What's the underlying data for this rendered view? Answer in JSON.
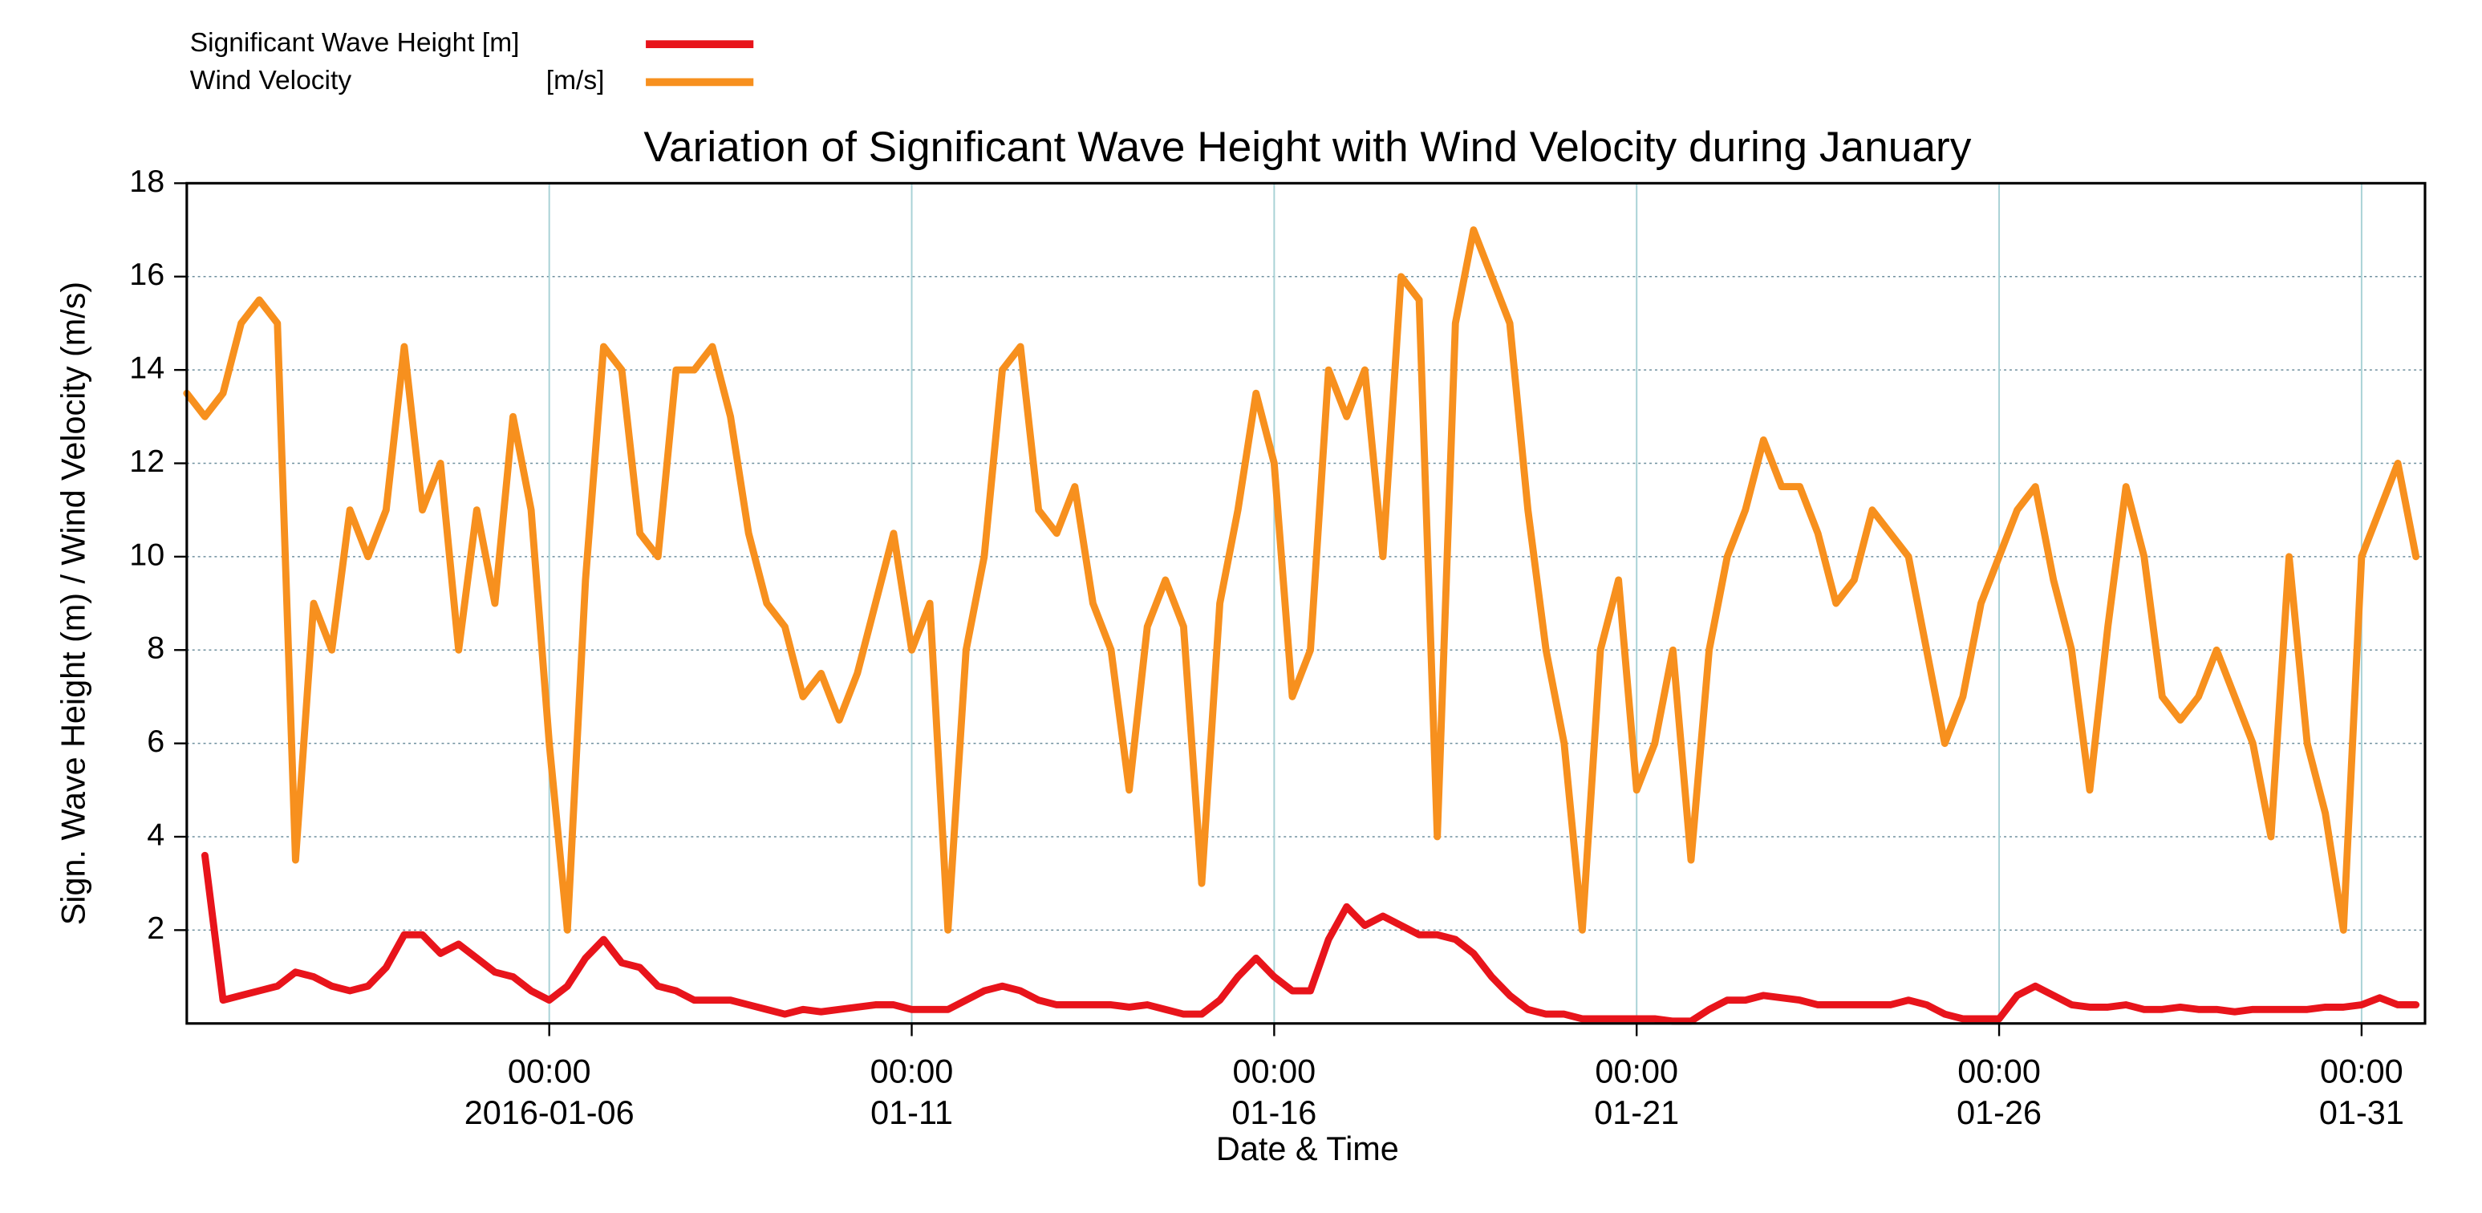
{
  "chart_data": {
    "type": "line",
    "title": "Variation of Significant Wave Height with Wind Velocity during January",
    "x_label": "Date & Time",
    "y_label": "Sign. Wave Height (m) / Wind Velocity (m/s)",
    "x": [
      "2016-01-01 00:00",
      "2016-01-01 06:00",
      "2016-01-01 12:00",
      "2016-01-01 18:00",
      "2016-01-02 00:00",
      "2016-01-02 06:00",
      "2016-01-02 12:00",
      "2016-01-02 18:00",
      "2016-01-03 00:00",
      "2016-01-03 06:00",
      "2016-01-03 12:00",
      "2016-01-03 18:00",
      "2016-01-04 00:00",
      "2016-01-04 06:00",
      "2016-01-04 12:00",
      "2016-01-04 18:00",
      "2016-01-05 00:00",
      "2016-01-05 06:00",
      "2016-01-05 12:00",
      "2016-01-05 18:00",
      "2016-01-06 00:00",
      "2016-01-06 06:00",
      "2016-01-06 12:00",
      "2016-01-06 18:00",
      "2016-01-07 00:00",
      "2016-01-07 06:00",
      "2016-01-07 12:00",
      "2016-01-07 18:00",
      "2016-01-08 00:00",
      "2016-01-08 06:00",
      "2016-01-08 12:00",
      "2016-01-08 18:00",
      "2016-01-09 00:00",
      "2016-01-09 06:00",
      "2016-01-09 12:00",
      "2016-01-09 18:00",
      "2016-01-10 00:00",
      "2016-01-10 06:00",
      "2016-01-10 12:00",
      "2016-01-10 18:00",
      "2016-01-11 00:00",
      "2016-01-11 06:00",
      "2016-01-11 12:00",
      "2016-01-11 18:00",
      "2016-01-12 00:00",
      "2016-01-12 06:00",
      "2016-01-12 12:00",
      "2016-01-12 18:00",
      "2016-01-13 00:00",
      "2016-01-13 06:00",
      "2016-01-13 12:00",
      "2016-01-13 18:00",
      "2016-01-14 00:00",
      "2016-01-14 06:00",
      "2016-01-14 12:00",
      "2016-01-14 18:00",
      "2016-01-15 00:00",
      "2016-01-15 06:00",
      "2016-01-15 12:00",
      "2016-01-15 18:00",
      "2016-01-16 00:00",
      "2016-01-16 06:00",
      "2016-01-16 12:00",
      "2016-01-16 18:00",
      "2016-01-17 00:00",
      "2016-01-17 06:00",
      "2016-01-17 12:00",
      "2016-01-17 18:00",
      "2016-01-18 00:00",
      "2016-01-18 06:00",
      "2016-01-18 12:00",
      "2016-01-18 18:00",
      "2016-01-19 00:00",
      "2016-01-19 06:00",
      "2016-01-19 12:00",
      "2016-01-19 18:00",
      "2016-01-20 00:00",
      "2016-01-20 06:00",
      "2016-01-20 12:00",
      "2016-01-20 18:00",
      "2016-01-21 00:00",
      "2016-01-21 06:00",
      "2016-01-21 12:00",
      "2016-01-21 18:00",
      "2016-01-22 00:00",
      "2016-01-22 06:00",
      "2016-01-22 12:00",
      "2016-01-22 18:00",
      "2016-01-23 00:00",
      "2016-01-23 06:00",
      "2016-01-23 12:00",
      "2016-01-23 18:00",
      "2016-01-24 00:00",
      "2016-01-24 06:00",
      "2016-01-24 12:00",
      "2016-01-24 18:00",
      "2016-01-25 00:00",
      "2016-01-25 06:00",
      "2016-01-25 12:00",
      "2016-01-25 18:00",
      "2016-01-26 00:00",
      "2016-01-26 06:00",
      "2016-01-26 12:00",
      "2016-01-26 18:00",
      "2016-01-27 00:00",
      "2016-01-27 06:00",
      "2016-01-27 12:00",
      "2016-01-27 18:00",
      "2016-01-28 00:00",
      "2016-01-28 06:00",
      "2016-01-28 12:00",
      "2016-01-28 18:00",
      "2016-01-29 00:00",
      "2016-01-29 06:00",
      "2016-01-29 12:00",
      "2016-01-29 18:00",
      "2016-01-30 00:00",
      "2016-01-30 06:00",
      "2016-01-30 12:00",
      "2016-01-30 18:00",
      "2016-01-31 00:00",
      "2016-01-31 06:00",
      "2016-01-31 12:00",
      "2016-01-31 18:00"
    ],
    "series": [
      {
        "name": "Significant Wave Height [m]",
        "color": "#e8141b",
        "values": [
          null,
          3.6,
          0.5,
          0.6,
          0.7,
          0.8,
          1.1,
          1.0,
          0.8,
          0.7,
          0.8,
          1.2,
          1.9,
          1.9,
          1.5,
          1.7,
          1.4,
          1.1,
          1.0,
          0.7,
          0.5,
          0.8,
          1.4,
          1.8,
          1.3,
          1.2,
          0.8,
          0.7,
          0.5,
          0.5,
          0.5,
          0.4,
          0.3,
          0.2,
          0.3,
          0.25,
          0.3,
          0.35,
          0.4,
          0.4,
          0.3,
          0.3,
          0.3,
          0.5,
          0.7,
          0.8,
          0.7,
          0.5,
          0.4,
          0.4,
          0.4,
          0.4,
          0.35,
          0.4,
          0.3,
          0.2,
          0.2,
          0.5,
          1.0,
          1.4,
          1.0,
          0.7,
          0.7,
          1.8,
          2.5,
          2.1,
          2.3,
          2.1,
          1.9,
          1.9,
          1.8,
          1.5,
          1.0,
          0.6,
          0.3,
          0.2,
          0.2,
          0.1,
          0.1,
          0.1,
          0.1,
          0.1,
          0.05,
          0.05,
          0.3,
          0.5,
          0.5,
          0.6,
          0.55,
          0.5,
          0.4,
          0.4,
          0.4,
          0.4,
          0.4,
          0.5,
          0.4,
          0.2,
          0.1,
          0.1,
          0.1,
          0.6,
          0.8,
          0.6,
          0.4,
          0.35,
          0.35,
          0.4,
          0.3,
          0.3,
          0.35,
          0.3,
          0.3,
          0.25,
          0.3,
          0.3,
          0.3,
          0.3,
          0.35,
          0.35,
          0.4,
          0.55,
          0.4,
          0.4
        ]
      },
      {
        "name": "Wind Velocity",
        "legend_unit": "[m/s]",
        "color": "#f7901e",
        "values": [
          13.5,
          13.0,
          13.5,
          15,
          15.5,
          15,
          3.5,
          9,
          8,
          11,
          10,
          11,
          14.5,
          11,
          12,
          8,
          11,
          9,
          13,
          11,
          6,
          2,
          9.5,
          14.5,
          14,
          10.5,
          10,
          14,
          14,
          14.5,
          13,
          10.5,
          9,
          8.5,
          7,
          7.5,
          6.5,
          7.5,
          9,
          10.5,
          8,
          9,
          2,
          8,
          10,
          14,
          14.5,
          11,
          10.5,
          11.5,
          9,
          8,
          5,
          8.5,
          9.5,
          8.5,
          3,
          9,
          11,
          13.5,
          12,
          7,
          8,
          14,
          13,
          14,
          10,
          16,
          15.5,
          4,
          15,
          17,
          16,
          15,
          11,
          8,
          6,
          2,
          8,
          9.5,
          5,
          6,
          8,
          3.5,
          8,
          10,
          11,
          12.5,
          11.5,
          11.5,
          10.5,
          9,
          9.5,
          11,
          10.5,
          10,
          8,
          6,
          7,
          9,
          10,
          11,
          11.5,
          9.5,
          8,
          5,
          8.5,
          11.5,
          10,
          7,
          6.5,
          7,
          8,
          7,
          6,
          4,
          10,
          6,
          4.5,
          2,
          10,
          11,
          12,
          10
        ]
      }
    ],
    "xlim": [
      "2016-01-01 00:00",
      "2016-01-31 21:00"
    ],
    "xticks": [
      {
        "value": "2016-01-06 00:00",
        "label": [
          "00:00",
          "2016-01-06"
        ]
      },
      {
        "value": "2016-01-11 00:00",
        "label": [
          "00:00",
          "01-11"
        ]
      },
      {
        "value": "2016-01-16 00:00",
        "label": [
          "00:00",
          "01-16"
        ]
      },
      {
        "value": "2016-01-21 00:00",
        "label": [
          "00:00",
          "01-21"
        ]
      },
      {
        "value": "2016-01-26 00:00",
        "label": [
          "00:00",
          "01-26"
        ]
      },
      {
        "value": "2016-01-31 00:00",
        "label": [
          "00:00",
          "01-31"
        ]
      }
    ],
    "ylim": [
      0,
      18
    ],
    "yticks": [
      2,
      4,
      6,
      8,
      10,
      12,
      14,
      16,
      18
    ],
    "grid": true,
    "legend": "top-left"
  }
}
